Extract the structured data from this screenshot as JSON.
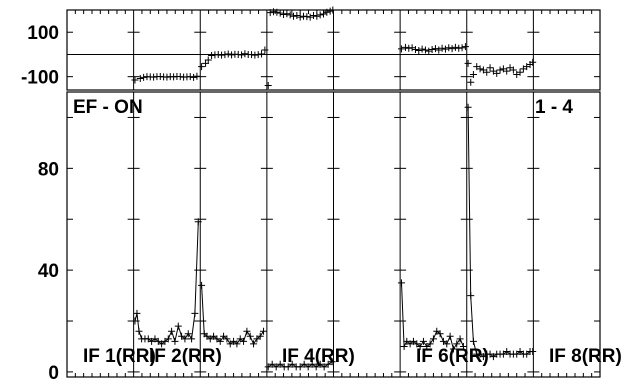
{
  "chart_data": [
    {
      "type": "scatter",
      "panel": "phase",
      "ylim": [
        -160,
        200
      ],
      "y_ticks": [
        -100,
        100
      ],
      "y_tick_labels": [
        "-100",
        "100"
      ],
      "reference_line": 0,
      "x_range": [
        0,
        8
      ],
      "series": [
        {
          "if": 1,
          "x": [
            1.02,
            1.1,
            1.15,
            1.2,
            1.25,
            1.3,
            1.35,
            1.4,
            1.45,
            1.5,
            1.55,
            1.6,
            1.65,
            1.7,
            1.75,
            1.8,
            1.85,
            1.9,
            1.95
          ],
          "y": [
            -115,
            -108,
            -103,
            -100,
            -101,
            -102,
            -100,
            -99,
            -101,
            -102,
            -100,
            -101,
            -99,
            -100,
            -102,
            -101,
            -100,
            -103,
            -98
          ]
        },
        {
          "if": 2,
          "x": [
            2.02,
            2.08,
            2.12,
            2.17,
            2.22,
            2.27,
            2.32,
            2.37,
            2.42,
            2.47,
            2.52,
            2.57,
            2.62,
            2.67,
            2.72,
            2.77,
            2.82,
            2.87,
            2.92,
            2.97
          ],
          "y": [
            -55,
            -40,
            -25,
            -5,
            -2,
            0,
            -3,
            -1,
            2,
            -2,
            1,
            0,
            -2,
            3,
            0,
            -1,
            -3,
            -1,
            2,
            20
          ]
        },
        {
          "if": 4,
          "x": [
            3.02,
            3.05,
            3.1,
            3.15,
            3.2,
            3.25,
            3.3,
            3.35,
            3.4,
            3.45,
            3.5,
            3.55,
            3.6,
            3.65,
            3.7,
            3.75,
            3.8,
            3.85,
            3.9,
            3.95,
            3.99
          ],
          "y": [
            -140,
            188,
            192,
            190,
            186,
            180,
            183,
            178,
            172,
            175,
            168,
            172,
            170,
            168,
            175,
            172,
            178,
            182,
            190,
            195,
            200
          ]
        },
        {
          "if": 6,
          "x": [
            5.02,
            5.08,
            5.13,
            5.18,
            5.23,
            5.28,
            5.33,
            5.38,
            5.43,
            5.48,
            5.53,
            5.58,
            5.63,
            5.68,
            5.73,
            5.78,
            5.83,
            5.88,
            5.93,
            5.98
          ],
          "y": [
            25,
            32,
            28,
            30,
            22,
            18,
            24,
            20,
            15,
            22,
            26,
            20,
            28,
            24,
            30,
            26,
            32,
            28,
            30,
            35
          ]
        },
        {
          "if": 8,
          "x": [
            6.02,
            6.06,
            6.1,
            6.15,
            6.2,
            6.25,
            6.3,
            6.35,
            6.4,
            6.45,
            6.5,
            6.55,
            6.6,
            6.65,
            6.7,
            6.75,
            6.8,
            6.85,
            6.9,
            6.95,
            6.99
          ],
          "y": [
            -40,
            -125,
            -90,
            -55,
            -65,
            -70,
            -80,
            -60,
            -75,
            -85,
            -70,
            -65,
            -75,
            -60,
            -70,
            -90,
            -80,
            -65,
            -55,
            -45,
            -35
          ]
        }
      ]
    },
    {
      "type": "line",
      "panel": "amplitude",
      "ylim": [
        -2,
        110
      ],
      "y_ticks": [
        0,
        40,
        80
      ],
      "y_tick_labels": [
        "0",
        "40",
        "80"
      ],
      "x_range": [
        0,
        8
      ],
      "series": [
        {
          "if": 1,
          "x": [
            1.02,
            1.05,
            1.08,
            1.12,
            1.17,
            1.22,
            1.27,
            1.32,
            1.37,
            1.42,
            1.47,
            1.52,
            1.57,
            1.62,
            1.67,
            1.72,
            1.77,
            1.82,
            1.87,
            1.92,
            1.97
          ],
          "y": [
            20,
            23,
            16,
            13,
            13,
            13,
            12,
            13,
            12,
            11,
            12,
            13,
            16,
            12,
            18,
            14,
            13,
            15,
            13,
            23,
            59
          ]
        },
        {
          "if": 2,
          "x": [
            2.02,
            2.06,
            2.1,
            2.15,
            2.2,
            2.25,
            2.3,
            2.35,
            2.4,
            2.45,
            2.5,
            2.55,
            2.6,
            2.65,
            2.7,
            2.75,
            2.8,
            2.85,
            2.9,
            2.95
          ],
          "y": [
            34,
            15,
            14,
            13,
            14,
            13,
            12,
            14,
            13,
            11,
            12,
            11,
            13,
            12,
            16,
            14,
            11,
            13,
            14,
            16
          ]
        },
        {
          "if": 4,
          "x": [
            3.02,
            3.08,
            3.14,
            3.2,
            3.26,
            3.32,
            3.38,
            3.44,
            3.5,
            3.56,
            3.62,
            3.68,
            3.74,
            3.8,
            3.86,
            3.92,
            3.98
          ],
          "y": [
            2,
            3,
            2,
            3,
            2,
            2,
            3,
            2,
            2,
            3,
            2,
            3,
            2,
            3,
            2,
            3,
            4
          ]
        },
        {
          "if": 6,
          "x": [
            5.02,
            5.06,
            5.1,
            5.15,
            5.2,
            5.25,
            5.3,
            5.35,
            5.4,
            5.45,
            5.5,
            5.55,
            5.6,
            5.65,
            5.7,
            5.75,
            5.8,
            5.85,
            5.9,
            5.95
          ],
          "y": [
            35,
            10,
            12,
            11,
            12,
            11,
            10,
            12,
            10,
            11,
            13,
            16,
            15,
            12,
            11,
            14,
            9,
            11,
            13,
            10
          ]
        },
        {
          "if": 8,
          "x": [
            6.02,
            6.06,
            6.1,
            6.15,
            6.2,
            6.25,
            6.3,
            6.35,
            6.4,
            6.45,
            6.5,
            6.55,
            6.6,
            6.65,
            6.7,
            6.75,
            6.8,
            6.85,
            6.9,
            6.95,
            6.99
          ],
          "y": [
            104,
            30,
            12,
            7,
            7,
            6,
            7,
            7,
            6,
            7,
            7,
            7,
            8,
            7,
            7,
            7,
            8,
            7,
            7,
            8,
            8
          ]
        }
      ],
      "annotations": [
        {
          "id": "ef-label",
          "text": "EF - ON"
        },
        {
          "id": "range-label",
          "text": "1 - 4"
        }
      ],
      "if_labels": [
        "IF 1(RR)",
        "IF 2(RR)",
        "IF 4(RR)",
        "IF 6(RR)",
        "IF 8(RR)"
      ]
    }
  ]
}
